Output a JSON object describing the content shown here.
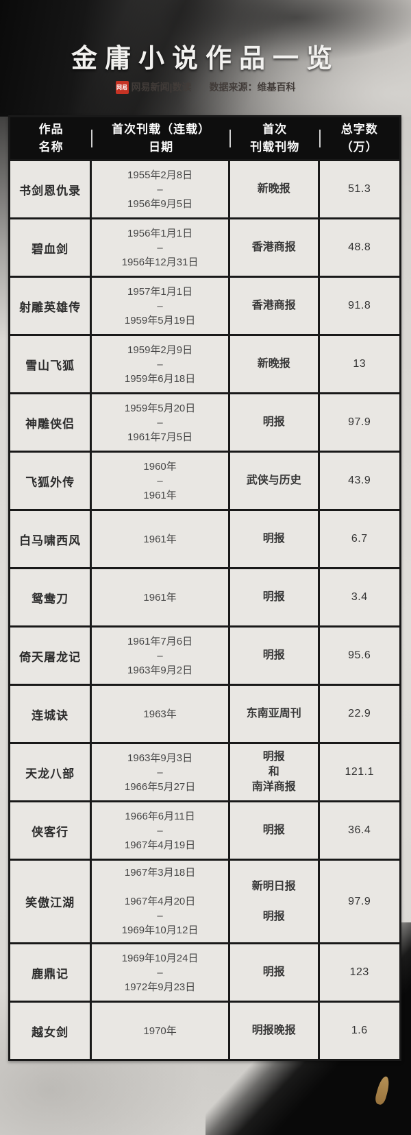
{
  "header": {
    "title": "金庸小说作品一览",
    "brand_logo": "网易",
    "brand": "网易新闻|数读",
    "source": "数据来源：维基百科"
  },
  "table": {
    "columns": [
      {
        "line1": "作品",
        "line2": "名称"
      },
      {
        "line1": "首次刊载（连载）",
        "line2": "日期"
      },
      {
        "line1": "首次",
        "line2": "刊载刊物"
      },
      {
        "line1": "总字数",
        "line2": "（万）"
      }
    ],
    "rows": [
      {
        "name": "书剑恩仇录",
        "dates": [
          "1955年2月8日",
          "–",
          "1956年9月5日"
        ],
        "publication": [
          "新晚报"
        ],
        "words": "51.3"
      },
      {
        "name": "碧血剑",
        "dates": [
          "1956年1月1日",
          "–",
          "1956年12月31日"
        ],
        "publication": [
          "香港商报"
        ],
        "words": "48.8"
      },
      {
        "name": "射雕英雄传",
        "dates": [
          "1957年1月1日",
          "–",
          "1959年5月19日"
        ],
        "publication": [
          "香港商报"
        ],
        "words": "91.8"
      },
      {
        "name": "雪山飞狐",
        "dates": [
          "1959年2月9日",
          "–",
          "1959年6月18日"
        ],
        "publication": [
          "新晚报"
        ],
        "words": "13"
      },
      {
        "name": "神雕侠侣",
        "dates": [
          "1959年5月20日",
          "–",
          "1961年7月5日"
        ],
        "publication": [
          "明报"
        ],
        "words": "97.9"
      },
      {
        "name": "飞狐外传",
        "dates": [
          "1960年",
          "–",
          "1961年"
        ],
        "publication": [
          "武侠与历史"
        ],
        "words": "43.9"
      },
      {
        "name": "白马啸西风",
        "dates": [
          "1961年"
        ],
        "publication": [
          "明报"
        ],
        "words": "6.7"
      },
      {
        "name": "鸳鸯刀",
        "dates": [
          "1961年"
        ],
        "publication": [
          "明报"
        ],
        "words": "3.4"
      },
      {
        "name": "倚天屠龙记",
        "dates": [
          "1961年7月6日",
          "–",
          "1963年9月2日"
        ],
        "publication": [
          "明报"
        ],
        "words": "95.6"
      },
      {
        "name": "连城诀",
        "dates": [
          "1963年"
        ],
        "publication": [
          "东南亚周刊"
        ],
        "words": "22.9"
      },
      {
        "name": "天龙八部",
        "dates": [
          "1963年9月3日",
          "–",
          "1966年5月27日"
        ],
        "publication": [
          "明报",
          "和",
          "南洋商报"
        ],
        "words": "121.1"
      },
      {
        "name": "侠客行",
        "dates": [
          "1966年6月11日",
          "–",
          "1967年4月19日"
        ],
        "publication": [
          "明报"
        ],
        "words": "36.4"
      },
      {
        "name": "笑傲江湖",
        "dates": [
          "1967年3月18日",
          "",
          "1967年4月20日",
          "–",
          "1969年10月12日"
        ],
        "publication": [
          "新明日报",
          "",
          "明报"
        ],
        "words": "97.9"
      },
      {
        "name": "鹿鼎记",
        "dates": [
          "1969年10月24日",
          "–",
          "1972年9月23日"
        ],
        "publication": [
          "明报"
        ],
        "words": "123"
      },
      {
        "name": "越女剑",
        "dates": [
          "1970年"
        ],
        "publication": [
          "明报晚报"
        ],
        "words": "1.6"
      }
    ]
  },
  "colors": {
    "accent_red": "#c63324",
    "table_header_bg": "#0e0e0e",
    "cell_bg": "#e9e7e3",
    "border": "#191919",
    "title_color": "#f2f1ef",
    "text_dark": "#3a3a3a"
  }
}
